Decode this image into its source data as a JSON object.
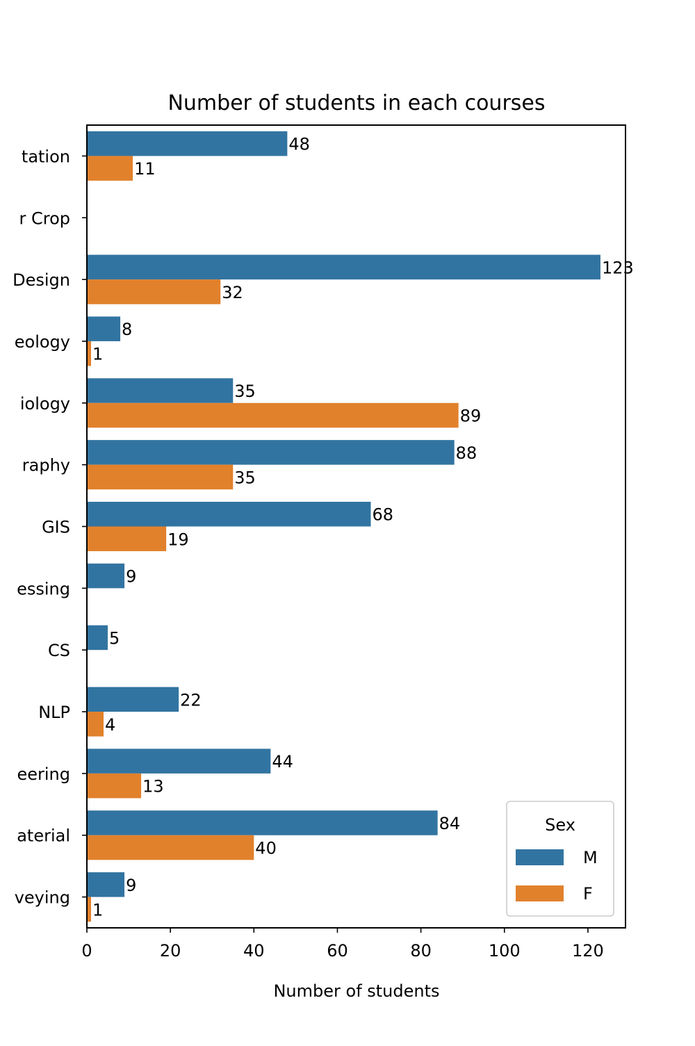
{
  "chart_data": {
    "type": "bar",
    "orientation": "horizontal",
    "title": "Number of students in each courses",
    "xlabel": "Number of students",
    "ylabel": "",
    "xlim": [
      0,
      129
    ],
    "xticks": [
      0,
      20,
      40,
      60,
      80,
      100,
      120
    ],
    "categories": [
      "tation",
      "r Crop",
      "Design",
      "eology",
      "iology",
      "raphy",
      "GIS",
      "essing",
      "CS",
      "NLP",
      "eering",
      "aterial",
      "veying"
    ],
    "series": [
      {
        "name": "M",
        "color": "#3274a1",
        "values": [
          48,
          null,
          123,
          8,
          35,
          88,
          68,
          9,
          5,
          22,
          44,
          84,
          9
        ]
      },
      {
        "name": "F",
        "color": "#e1812c",
        "values": [
          11,
          null,
          32,
          1,
          89,
          35,
          19,
          null,
          null,
          4,
          13,
          40,
          1
        ]
      }
    ],
    "legend": {
      "title": "Sex",
      "position": "lower-right"
    },
    "grid": false,
    "bar_labels": true
  }
}
